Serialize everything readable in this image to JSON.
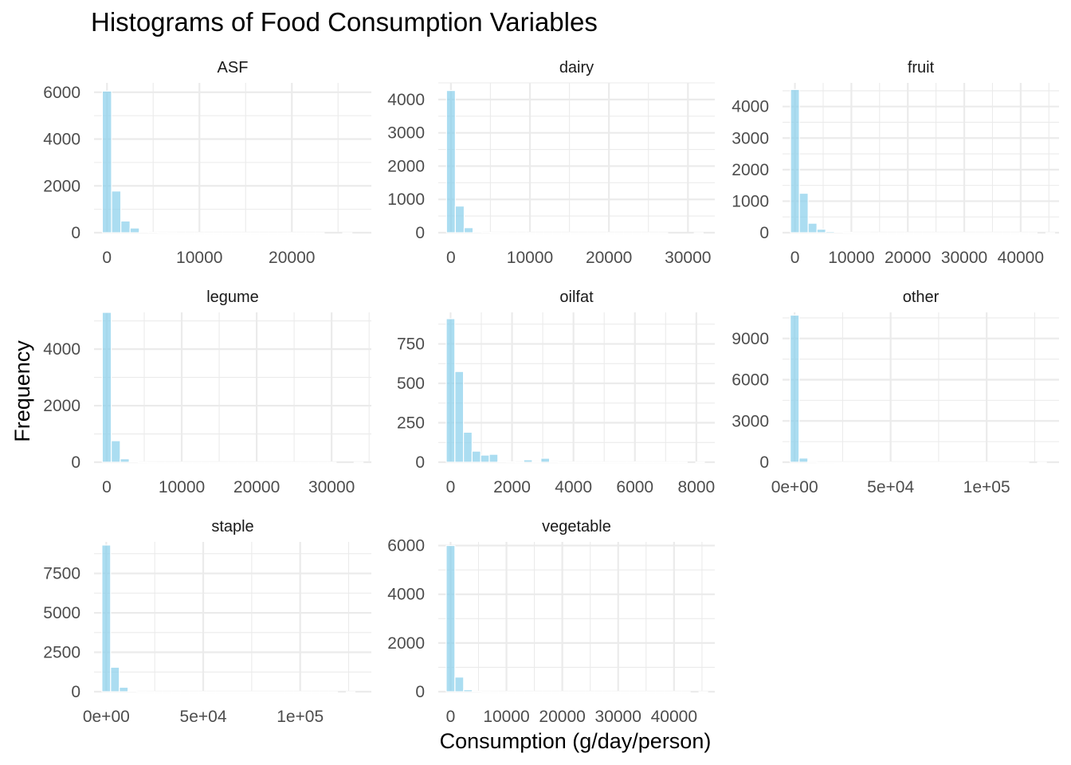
{
  "chart_data": {
    "type": "bar",
    "title": "Histograms of Food Consumption Variables",
    "xlabel": "Consumption (g/day/person)",
    "ylabel": "Frequency",
    "bar_color": "#87CEEB",
    "bar_alpha": 0.7,
    "grid": true,
    "panels": [
      {
        "name": "ASF",
        "xlim": [
          -1400,
          28600
        ],
        "ylim": [
          0,
          6400
        ],
        "x_ticks": [
          {
            "v": 0,
            "label": "0"
          },
          {
            "v": 10000,
            "label": "10000"
          },
          {
            "v": 20000,
            "label": "20000"
          }
        ],
        "y_ticks": [
          {
            "v": 0,
            "label": "0"
          },
          {
            "v": 2000,
            "label": "2000"
          },
          {
            "v": 4000,
            "label": "4000"
          },
          {
            "v": 6000,
            "label": "6000"
          }
        ],
        "bin_start": -500,
        "bin_width": 1000,
        "counts": [
          6050,
          1780,
          500,
          200,
          40,
          15,
          8,
          5,
          3,
          2,
          2,
          1,
          1,
          1,
          1,
          1,
          1,
          1,
          1,
          1,
          1,
          1,
          1,
          1,
          0,
          0,
          1
        ]
      },
      {
        "name": "dairy",
        "xlim": [
          -1600,
          33400
        ],
        "ylim": [
          0,
          4500
        ],
        "x_ticks": [
          {
            "v": 0,
            "label": "0"
          },
          {
            "v": 10000,
            "label": "10000"
          },
          {
            "v": 20000,
            "label": "20000"
          },
          {
            "v": 30000,
            "label": "30000"
          }
        ],
        "y_ticks": [
          {
            "v": 0,
            "label": "0"
          },
          {
            "v": 1000,
            "label": "1000"
          },
          {
            "v": 2000,
            "label": "2000"
          },
          {
            "v": 3000,
            "label": "3000"
          },
          {
            "v": 4000,
            "label": "4000"
          }
        ],
        "bin_start": -560,
        "bin_width": 1120,
        "counts": [
          4270,
          800,
          150,
          30,
          10,
          5,
          3,
          2,
          2,
          1,
          1,
          1,
          1,
          1,
          1,
          1,
          1,
          1,
          1,
          1,
          1,
          1,
          1,
          1,
          1,
          0,
          0,
          0,
          1
        ]
      },
      {
        "name": "fruit",
        "xlim": [
          -2200,
          46800
        ],
        "ylim": [
          0,
          4750
        ],
        "x_ticks": [
          {
            "v": 0,
            "label": "0"
          },
          {
            "v": 10000,
            "label": "10000"
          },
          {
            "v": 20000,
            "label": "20000"
          },
          {
            "v": 30000,
            "label": "30000"
          },
          {
            "v": 40000,
            "label": "40000"
          }
        ],
        "y_ticks": [
          {
            "v": 0,
            "label": "0"
          },
          {
            "v": 1000,
            "label": "1000"
          },
          {
            "v": 2000,
            "label": "2000"
          },
          {
            "v": 3000,
            "label": "3000"
          },
          {
            "v": 4000,
            "label": "4000"
          }
        ],
        "bin_start": -780,
        "bin_width": 1560,
        "counts": [
          4540,
          1250,
          300,
          110,
          40,
          15,
          8,
          5,
          3,
          2,
          2,
          1,
          1,
          1,
          1,
          1,
          1,
          1,
          1,
          1,
          1,
          1,
          1,
          1,
          1,
          1,
          1,
          1,
          0,
          1
        ]
      },
      {
        "name": "legume",
        "xlim": [
          -1700,
          35300
        ],
        "ylim": [
          0,
          5300
        ],
        "x_ticks": [
          {
            "v": 0,
            "label": "0"
          },
          {
            "v": 10000,
            "label": "10000"
          },
          {
            "v": 20000,
            "label": "20000"
          },
          {
            "v": 30000,
            "label": "30000"
          }
        ],
        "y_ticks": [
          {
            "v": 0,
            "label": "0"
          },
          {
            "v": 2000,
            "label": "2000"
          },
          {
            "v": 4000,
            "label": "4000"
          }
        ],
        "bin_start": -600,
        "bin_width": 1200,
        "counts": [
          5300,
          760,
          120,
          20,
          6,
          3,
          2,
          1,
          1,
          1,
          1,
          1,
          1,
          1,
          1,
          1,
          1,
          1,
          1,
          1,
          1,
          1,
          1,
          1,
          1,
          1,
          0,
          0,
          1
        ]
      },
      {
        "name": "oilfat",
        "xlim": [
          -400,
          8600
        ],
        "ylim": [
          0,
          950
        ],
        "x_ticks": [
          {
            "v": 0,
            "label": "0"
          },
          {
            "v": 2000,
            "label": "2000"
          },
          {
            "v": 4000,
            "label": "4000"
          },
          {
            "v": 6000,
            "label": "6000"
          },
          {
            "v": 8000,
            "label": "8000"
          }
        ],
        "y_ticks": [
          {
            "v": 0,
            "label": "0"
          },
          {
            "v": 250,
            "label": "250"
          },
          {
            "v": 500,
            "label": "500"
          },
          {
            "v": 750,
            "label": "750"
          }
        ],
        "bin_start": -140,
        "bin_width": 280,
        "counts": [
          910,
          575,
          190,
          70,
          45,
          50,
          3,
          2,
          1,
          15,
          2,
          25,
          2,
          1,
          1,
          1,
          1,
          1,
          1,
          1,
          1,
          1,
          1,
          1,
          1,
          1,
          1,
          1,
          0,
          1
        ]
      },
      {
        "name": "other",
        "xlim": [
          -6300,
          137700
        ],
        "ylim": [
          0,
          10900
        ],
        "x_ticks": [
          {
            "v": 0,
            "label": "0e+00"
          },
          {
            "v": 50000,
            "label": "5e+04"
          },
          {
            "v": 100000,
            "label": "1e+05"
          }
        ],
        "y_ticks": [
          {
            "v": 0,
            "label": "0"
          },
          {
            "v": 3000,
            "label": "3000"
          },
          {
            "v": 6000,
            "label": "6000"
          },
          {
            "v": 9000,
            "label": "9000"
          }
        ],
        "bin_start": -2300,
        "bin_width": 4600,
        "counts": [
          10700,
          300,
          20,
          5,
          2,
          1,
          1,
          1,
          1,
          1,
          1,
          1,
          1,
          1,
          1,
          1,
          1,
          1,
          1,
          1,
          1,
          1,
          1,
          1,
          1,
          1,
          1,
          0,
          1
        ]
      },
      {
        "name": "staple",
        "xlim": [
          -6300,
          136700
        ],
        "ylim": [
          0,
          9500
        ],
        "x_ticks": [
          {
            "v": 0,
            "label": "0e+00"
          },
          {
            "v": 50000,
            "label": "5e+04"
          },
          {
            "v": 100000,
            "label": "1e+05"
          }
        ],
        "y_ticks": [
          {
            "v": 0,
            "label": "0"
          },
          {
            "v": 2500,
            "label": "2500"
          },
          {
            "v": 5000,
            "label": "5000"
          },
          {
            "v": 7500,
            "label": "7500"
          }
        ],
        "bin_start": -2250,
        "bin_width": 4500,
        "counts": [
          9300,
          1550,
          280,
          40,
          10,
          5,
          3,
          2,
          1,
          1,
          1,
          1,
          1,
          1,
          1,
          1,
          1,
          1,
          1,
          1,
          1,
          1,
          1,
          1,
          1,
          1,
          1,
          0,
          1
        ]
      },
      {
        "name": "vegetable",
        "xlim": [
          -2200,
          47300
        ],
        "ylim": [
          0,
          6150
        ],
        "x_ticks": [
          {
            "v": 0,
            "label": "0"
          },
          {
            "v": 10000,
            "label": "10000"
          },
          {
            "v": 20000,
            "label": "20000"
          },
          {
            "v": 30000,
            "label": "30000"
          },
          {
            "v": 40000,
            "label": "40000"
          }
        ],
        "y_ticks": [
          {
            "v": 0,
            "label": "0"
          },
          {
            "v": 2000,
            "label": "2000"
          },
          {
            "v": 4000,
            "label": "4000"
          },
          {
            "v": 6000,
            "label": "6000"
          }
        ],
        "bin_start": -780,
        "bin_width": 1560,
        "counts": [
          6000,
          600,
          80,
          15,
          5,
          3,
          2,
          1,
          1,
          1,
          1,
          1,
          1,
          1,
          1,
          1,
          1,
          1,
          1,
          1,
          1,
          1,
          1,
          1,
          1,
          1,
          1,
          1,
          0,
          1
        ]
      }
    ]
  }
}
